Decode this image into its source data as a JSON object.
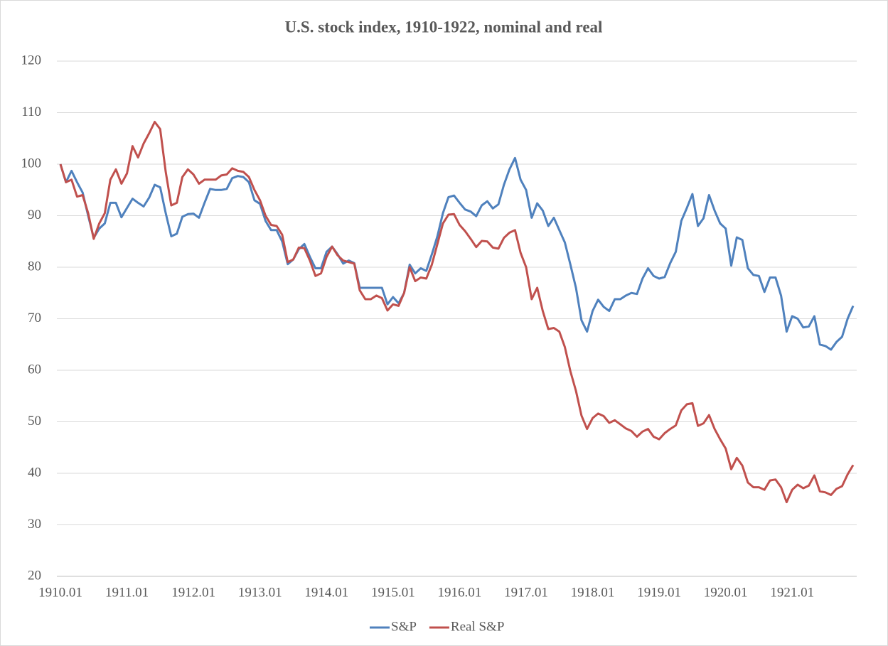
{
  "chart_data": {
    "type": "line",
    "title": "U.S. stock index, 1910-1922, nominal and real",
    "categories": [
      "1910.01",
      null,
      null,
      null,
      null,
      null,
      null,
      null,
      null,
      null,
      null,
      null,
      "1911.01",
      null,
      null,
      null,
      null,
      null,
      null,
      null,
      null,
      null,
      null,
      null,
      "1912.01",
      null,
      null,
      null,
      null,
      null,
      null,
      null,
      null,
      null,
      null,
      null,
      "1913.01",
      null,
      null,
      null,
      null,
      null,
      null,
      null,
      null,
      null,
      null,
      null,
      "1914.01",
      null,
      null,
      null,
      null,
      null,
      null,
      null,
      null,
      null,
      null,
      null,
      "1915.01",
      null,
      null,
      null,
      null,
      null,
      null,
      null,
      null,
      null,
      null,
      null,
      "1916.01",
      null,
      null,
      null,
      null,
      null,
      null,
      null,
      null,
      null,
      null,
      null,
      "1917.01",
      null,
      null,
      null,
      null,
      null,
      null,
      null,
      null,
      null,
      null,
      null,
      "1918.01",
      null,
      null,
      null,
      null,
      null,
      null,
      null,
      null,
      null,
      null,
      null,
      "1919.01",
      null,
      null,
      null,
      null,
      null,
      null,
      null,
      null,
      null,
      null,
      null,
      "1920.01",
      null,
      null,
      null,
      null,
      null,
      null,
      null,
      null,
      null,
      null,
      null,
      "1921.01",
      null,
      null,
      null,
      null,
      null,
      null,
      null,
      null,
      null,
      null,
      null
    ],
    "series": [
      {
        "name": "S&P",
        "color": "#4f81bd",
        "values": [
          100,
          96.5,
          98.7,
          96.5,
          94.5,
          90,
          85.7,
          87.5,
          88.5,
          92.5,
          92.5,
          89.7,
          91.5,
          93.3,
          92.5,
          91.8,
          93.5,
          96,
          95.5,
          90.5,
          86,
          86.5,
          89.8,
          90.3,
          90.4,
          89.6,
          92.5,
          95.2,
          95,
          95,
          95.2,
          97.3,
          97.7,
          97.5,
          96.5,
          93,
          92.3,
          89,
          87.2,
          87.2,
          85,
          80.6,
          81.5,
          83.5,
          84.5,
          82,
          79.8,
          79.8,
          83,
          84,
          82.5,
          80.7,
          81.3,
          80.8,
          76,
          76,
          76,
          76,
          76,
          72.8,
          74.2,
          73,
          75,
          80.5,
          78.8,
          79.8,
          79.3,
          82.5,
          86,
          90.5,
          93.6,
          93.9,
          92.5,
          91.2,
          90.8,
          89.9,
          92,
          92.8,
          91.4,
          92.2,
          96,
          99,
          101.2,
          97,
          95,
          89.6,
          92.4,
          91,
          88,
          89.6,
          87.2,
          84.8,
          80.5,
          76,
          69.7,
          67.5,
          71.5,
          73.7,
          72.3,
          71.5,
          73.8,
          73.8,
          74.5,
          75,
          74.8,
          77.8,
          79.8,
          78.3,
          77.8,
          78.1,
          80.8,
          83,
          89,
          91.5,
          94.2,
          88,
          89.5,
          94,
          91,
          88.5,
          87.5,
          80.3,
          85.8,
          85.3,
          79.8,
          78.5,
          78.3,
          75.2,
          78,
          78,
          74.5,
          67.5,
          70.5,
          70,
          68.3,
          68.5,
          70.5,
          65,
          64.7,
          64,
          65.5,
          66.5,
          70,
          72.5
        ]
      },
      {
        "name": "Real S&P",
        "color": "#c0504d",
        "values": [
          100,
          96.5,
          97,
          93.7,
          94,
          90.5,
          85.5,
          88.5,
          90.5,
          97,
          99,
          96.2,
          98.2,
          103.5,
          101.3,
          104,
          106,
          108.2,
          106.8,
          98.5,
          92,
          92.5,
          97.5,
          99,
          98,
          96.2,
          97,
          97,
          97,
          97.8,
          98,
          99.2,
          98.7,
          98.5,
          97.5,
          95,
          93,
          90,
          88.2,
          88,
          86.3,
          81,
          81.5,
          83.8,
          83.7,
          81.3,
          78.3,
          78.8,
          82,
          84,
          82.3,
          81.3,
          81,
          80.7,
          75.5,
          73.8,
          73.8,
          74.5,
          74,
          71.6,
          72.8,
          72.5,
          75,
          80,
          77.3,
          78,
          77.8,
          80.5,
          84.5,
          88.5,
          90.2,
          90.3,
          88.2,
          87,
          85.5,
          83.9,
          85.1,
          85,
          83.8,
          83.6,
          85.7,
          86.7,
          87.2,
          82.8,
          80,
          73.8,
          76,
          71.5,
          68,
          68.2,
          67.5,
          64.5,
          59.8,
          56,
          51.2,
          48.6,
          50.7,
          51.6,
          51.1,
          49.8,
          50.3,
          49.5,
          48.7,
          48.2,
          47.1,
          48.1,
          48.6,
          47.1,
          46.6,
          47.8,
          48.6,
          49.3,
          52.2,
          53.4,
          53.6,
          49.2,
          49.7,
          51.3,
          48.6,
          46.6,
          44.8,
          40.8,
          43,
          41.5,
          38.2,
          37.3,
          37.3,
          36.8,
          38.6,
          38.8,
          37.3,
          34.4,
          36.8,
          37.8,
          37.1,
          37.6,
          39.6,
          36.5,
          36.3,
          35.8,
          37,
          37.5,
          39.8,
          41.6
        ]
      }
    ],
    "ylim": [
      20,
      120
    ],
    "yticks": [
      20,
      30,
      40,
      50,
      60,
      70,
      80,
      90,
      100,
      110,
      120
    ],
    "grid": true,
    "legend": "bottom"
  }
}
